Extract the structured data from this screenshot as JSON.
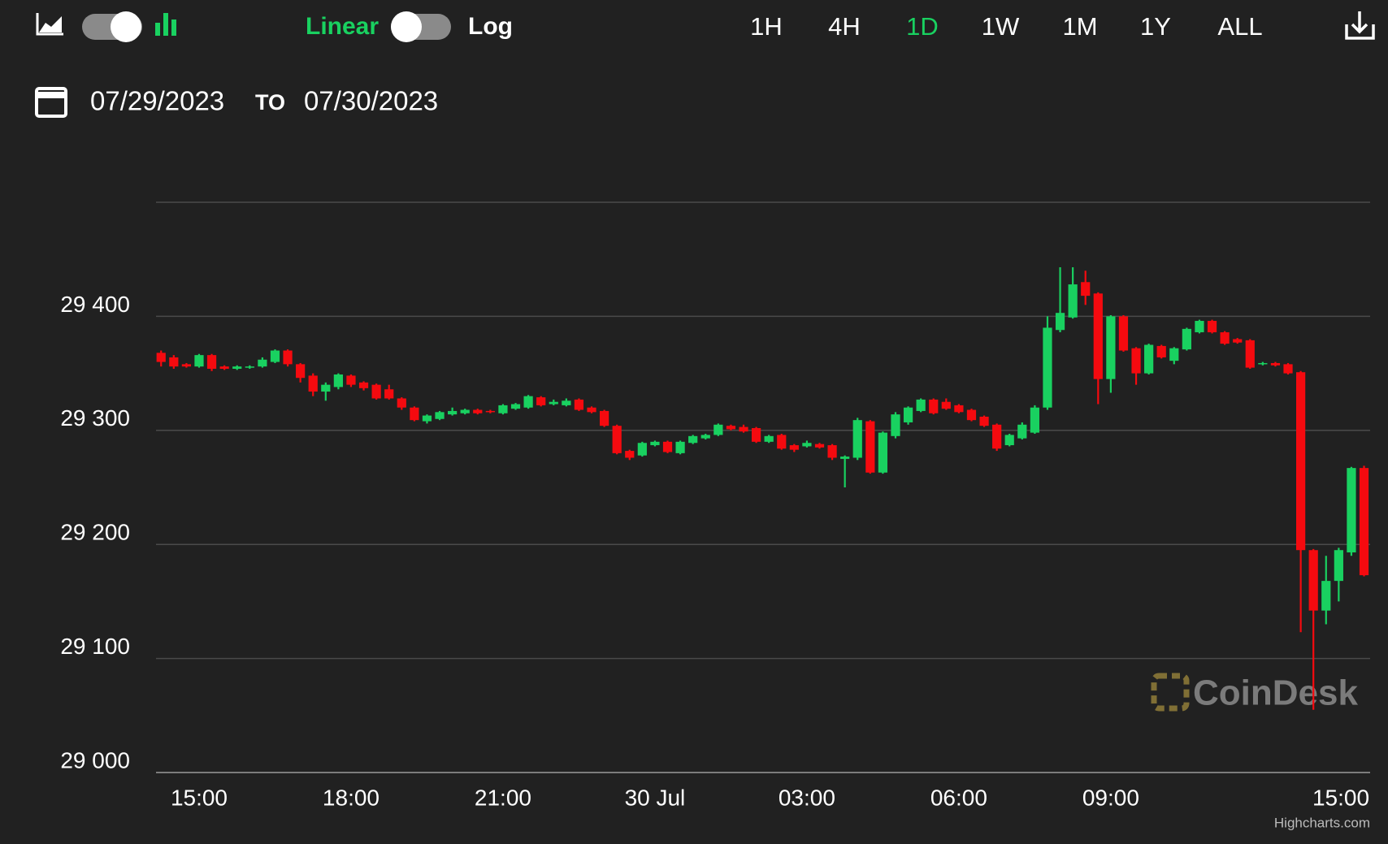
{
  "header": {
    "scale_linear": "Linear",
    "scale_log": "Log",
    "ranges": [
      "1H",
      "4H",
      "1D",
      "1W",
      "1M",
      "1Y",
      "ALL"
    ],
    "active_range": "1D",
    "date_from": "07/29/2023",
    "date_separator": "TO",
    "date_to": "07/30/2023"
  },
  "chart_data": {
    "type": "candlestick",
    "up_color": "#19d160",
    "down_color": "#f50a0f",
    "watermark": "CoinDesk",
    "credits": "Highcharts.com",
    "grid": true,
    "xlim": [
      14.15,
      38.12
    ],
    "xticks": [
      {
        "value": 15,
        "label": "15:00"
      },
      {
        "value": 18,
        "label": "18:00"
      },
      {
        "value": 21,
        "label": "21:00"
      },
      {
        "value": 24,
        "label": "30 Jul"
      },
      {
        "value": 27,
        "label": "03:00"
      },
      {
        "value": 30,
        "label": "06:00"
      },
      {
        "value": 33,
        "label": "09:00"
      },
      {
        "value": 39,
        "label": "15:00"
      }
    ],
    "ylim": [
      29000,
      29500
    ],
    "yticks": [
      {
        "value": 29000,
        "label": "29 000"
      },
      {
        "value": 29100,
        "label": "29 100"
      },
      {
        "value": 29200,
        "label": "29 200"
      },
      {
        "value": 29300,
        "label": "29 300"
      },
      {
        "value": 29400,
        "label": "29 400"
      }
    ],
    "x": [
      14.25,
      14.5,
      14.75,
      15,
      15.25,
      15.5,
      15.75,
      16,
      16.25,
      16.5,
      16.75,
      17,
      17.25,
      17.5,
      17.75,
      18,
      18.25,
      18.5,
      18.75,
      19,
      19.25,
      19.5,
      19.75,
      20,
      20.25,
      20.5,
      20.75,
      21,
      21.25,
      21.5,
      21.75,
      22,
      22.25,
      22.5,
      22.75,
      23,
      23.25,
      23.5,
      23.75,
      24,
      24.25,
      24.5,
      24.75,
      25,
      25.25,
      25.5,
      25.75,
      26,
      26.25,
      26.5,
      26.75,
      27,
      27.25,
      27.5,
      27.75,
      28,
      28.25,
      28.5,
      28.75,
      29,
      29.25,
      29.5,
      29.75,
      30,
      30.25,
      30.5,
      30.75,
      31,
      31.25,
      31.5,
      31.75,
      32,
      32.25,
      32.5,
      32.75,
      33,
      33.25,
      33.5,
      33.75,
      34,
      34.25,
      34.5,
      34.75,
      35,
      35.25,
      35.5,
      35.75,
      36,
      36.25,
      36.5,
      36.75,
      37,
      37.25,
      37.5,
      37.75,
      38
    ],
    "open": [
      29368,
      29364,
      29358,
      29356,
      29366,
      29356,
      29354,
      29355,
      29356,
      29360,
      29370,
      29358,
      29348,
      29334,
      29338,
      29348,
      29342,
      29340,
      29336,
      29328,
      29320,
      29308,
      29310,
      29314,
      29315,
      29318,
      29317,
      29315,
      29319,
      29320,
      29329,
      29323,
      29322,
      29327,
      29320,
      29317,
      29304,
      29282,
      29278,
      29287,
      29290,
      29280,
      29289,
      29293,
      29296,
      29304,
      29303,
      29302,
      29290,
      29296,
      29287,
      29286,
      29288,
      29287,
      29275,
      29276,
      29308,
      29263,
      29295,
      29307,
      29317,
      29327,
      29325,
      29322,
      29318,
      29312,
      29305,
      29287,
      29293,
      29298,
      29320,
      29388,
      29399,
      29430,
      29420,
      29345,
      29400,
      29372,
      29350,
      29374,
      29361,
      29371,
      29386,
      29396,
      29386,
      29380,
      29379,
      29358,
      29359,
      29358,
      29351,
      29195,
      29142,
      29168,
      29193,
      29267
    ],
    "high": [
      29370,
      29366,
      29359,
      29367,
      29367,
      29357,
      29357,
      29357,
      29364,
      29371,
      29371,
      29359,
      29350,
      29342,
      29350,
      29349,
      29343,
      29341,
      29340,
      29329,
      29321,
      29314,
      29317,
      29320,
      29319,
      29319,
      29318,
      29323,
      29324,
      29331,
      29330,
      29327,
      29328,
      29328,
      29321,
      29318,
      29305,
      29283,
      29290,
      29291,
      29291,
      29291,
      29296,
      29297,
      29306,
      29305,
      29305,
      29303,
      29296,
      29297,
      29288,
      29291,
      29289,
      29288,
      29278,
      29311,
      29309,
      29299,
      29316,
      29321,
      29328,
      29328,
      29328,
      29323,
      29319,
      29313,
      29306,
      29297,
      29307,
      29322,
      29400,
      29443,
      29443,
      29440,
      29421,
      29401,
      29401,
      29373,
      29376,
      29375,
      29373,
      29390,
      29397,
      29397,
      29387,
      29381,
      29380,
      29360,
      29360,
      29359,
      29352,
      29196,
      29190,
      29197,
      29268,
      29269
    ],
    "low": [
      29356,
      29354,
      29355,
      29355,
      29352,
      29353,
      29353,
      29354,
      29355,
      29359,
      29356,
      29342,
      29330,
      29326,
      29336,
      29338,
      29335,
      29327,
      29327,
      29318,
      29308,
      29306,
      29309,
      29313,
      29314,
      29314,
      29315,
      29314,
      29318,
      29319,
      29321,
      29322,
      29321,
      29317,
      29315,
      29303,
      29279,
      29274,
      29277,
      29286,
      29280,
      29279,
      29288,
      29292,
      29295,
      29300,
      29298,
      29289,
      29289,
      29283,
      29281,
      29285,
      29284,
      29274,
      29250,
      29274,
      29262,
      29262,
      29293,
      29305,
      29316,
      29314,
      29318,
      29315,
      29308,
      29303,
      29282,
      29286,
      29292,
      29297,
      29318,
      29386,
      29398,
      29410,
      29323,
      29333,
      29369,
      29340,
      29349,
      29363,
      29358,
      29370,
      29385,
      29385,
      29375,
      29376,
      29354,
      29357,
      29356,
      29349,
      29123,
      29055,
      29130,
      29150,
      29190,
      29172
    ],
    "close": [
      29360,
      29356,
      29356,
      29366,
      29354,
      29354,
      29356,
      29356,
      29362,
      29370,
      29358,
      29346,
      29334,
      29340,
      29349,
      29340,
      29337,
      29328,
      29328,
      29320,
      29309,
      29313,
      29316,
      29317,
      29318,
      29315,
      29316,
      29322,
      29323,
      29330,
      29322,
      29325,
      29326,
      29318,
      29316,
      29304,
      29280,
      29276,
      29289,
      29290,
      29281,
      29290,
      29295,
      29296,
      29305,
      29301,
      29299,
      29290,
      29295,
      29284,
      29283,
      29289,
      29285,
      29276,
      29277,
      29309,
      29263,
      29298,
      29314,
      29320,
      29327,
      29315,
      29319,
      29316,
      29309,
      29304,
      29284,
      29296,
      29305,
      29320,
      29390,
      29403,
      29428,
      29418,
      29345,
      29400,
      29370,
      29350,
      29375,
      29364,
      29372,
      29389,
      29396,
      29386,
      29376,
      29377,
      29355,
      29359,
      29357,
      29350,
      29195,
      29142,
      29168,
      29195,
      29267,
      29173
    ]
  }
}
